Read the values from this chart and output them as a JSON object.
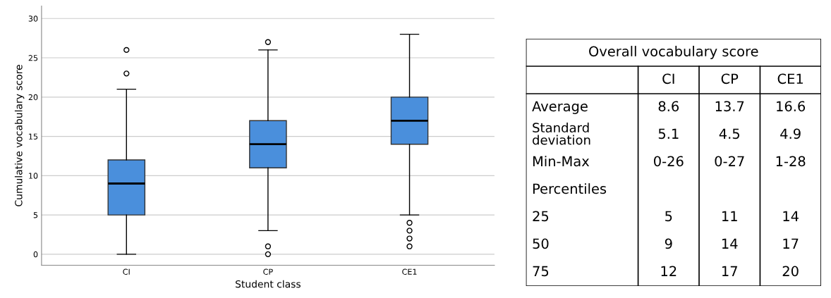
{
  "chart_data": [
    {
      "type": "box",
      "xlabel": "Student class",
      "ylabel": "Cumulative vocabulary score",
      "categories": [
        "CI",
        "CP",
        "CE1"
      ],
      "color": "#4a8fdc",
      "boxes": [
        {
          "low": 0,
          "q1": 5,
          "median": 9,
          "q3": 12,
          "high": 21,
          "outliers": [
            23,
            26
          ]
        },
        {
          "low": 3,
          "q1": 11,
          "median": 14,
          "q3": 17,
          "high": 26,
          "outliers": [
            0,
            1,
            27
          ]
        },
        {
          "low": 5,
          "q1": 14,
          "median": 17,
          "q3": 20,
          "high": 28,
          "outliers": [
            1,
            2,
            3,
            4
          ]
        }
      ],
      "ylim": [
        -1.4,
        31.6
      ],
      "yticks": [
        0,
        5,
        10,
        15,
        20,
        25,
        30
      ],
      "grid": "y"
    },
    {
      "type": "other",
      "title": "Overall vocabulary score",
      "categories": [
        "CI",
        "CP",
        "CE1"
      ],
      "y_categories": [
        "Average",
        "Standard deviation",
        "Min-Max",
        "Percentiles",
        "25",
        "50",
        "75"
      ],
      "cell_labels": [
        [
          "8.6",
          "13.7",
          "16.6"
        ],
        [
          "5.1",
          "4.5",
          "4.9"
        ],
        [
          "0-26",
          "0-27",
          "1-28"
        ],
        [
          null,
          null,
          null
        ],
        [
          "5",
          "11",
          "14"
        ],
        [
          "9",
          "14",
          "17"
        ],
        [
          "12",
          "17",
          "20"
        ]
      ]
    }
  ]
}
